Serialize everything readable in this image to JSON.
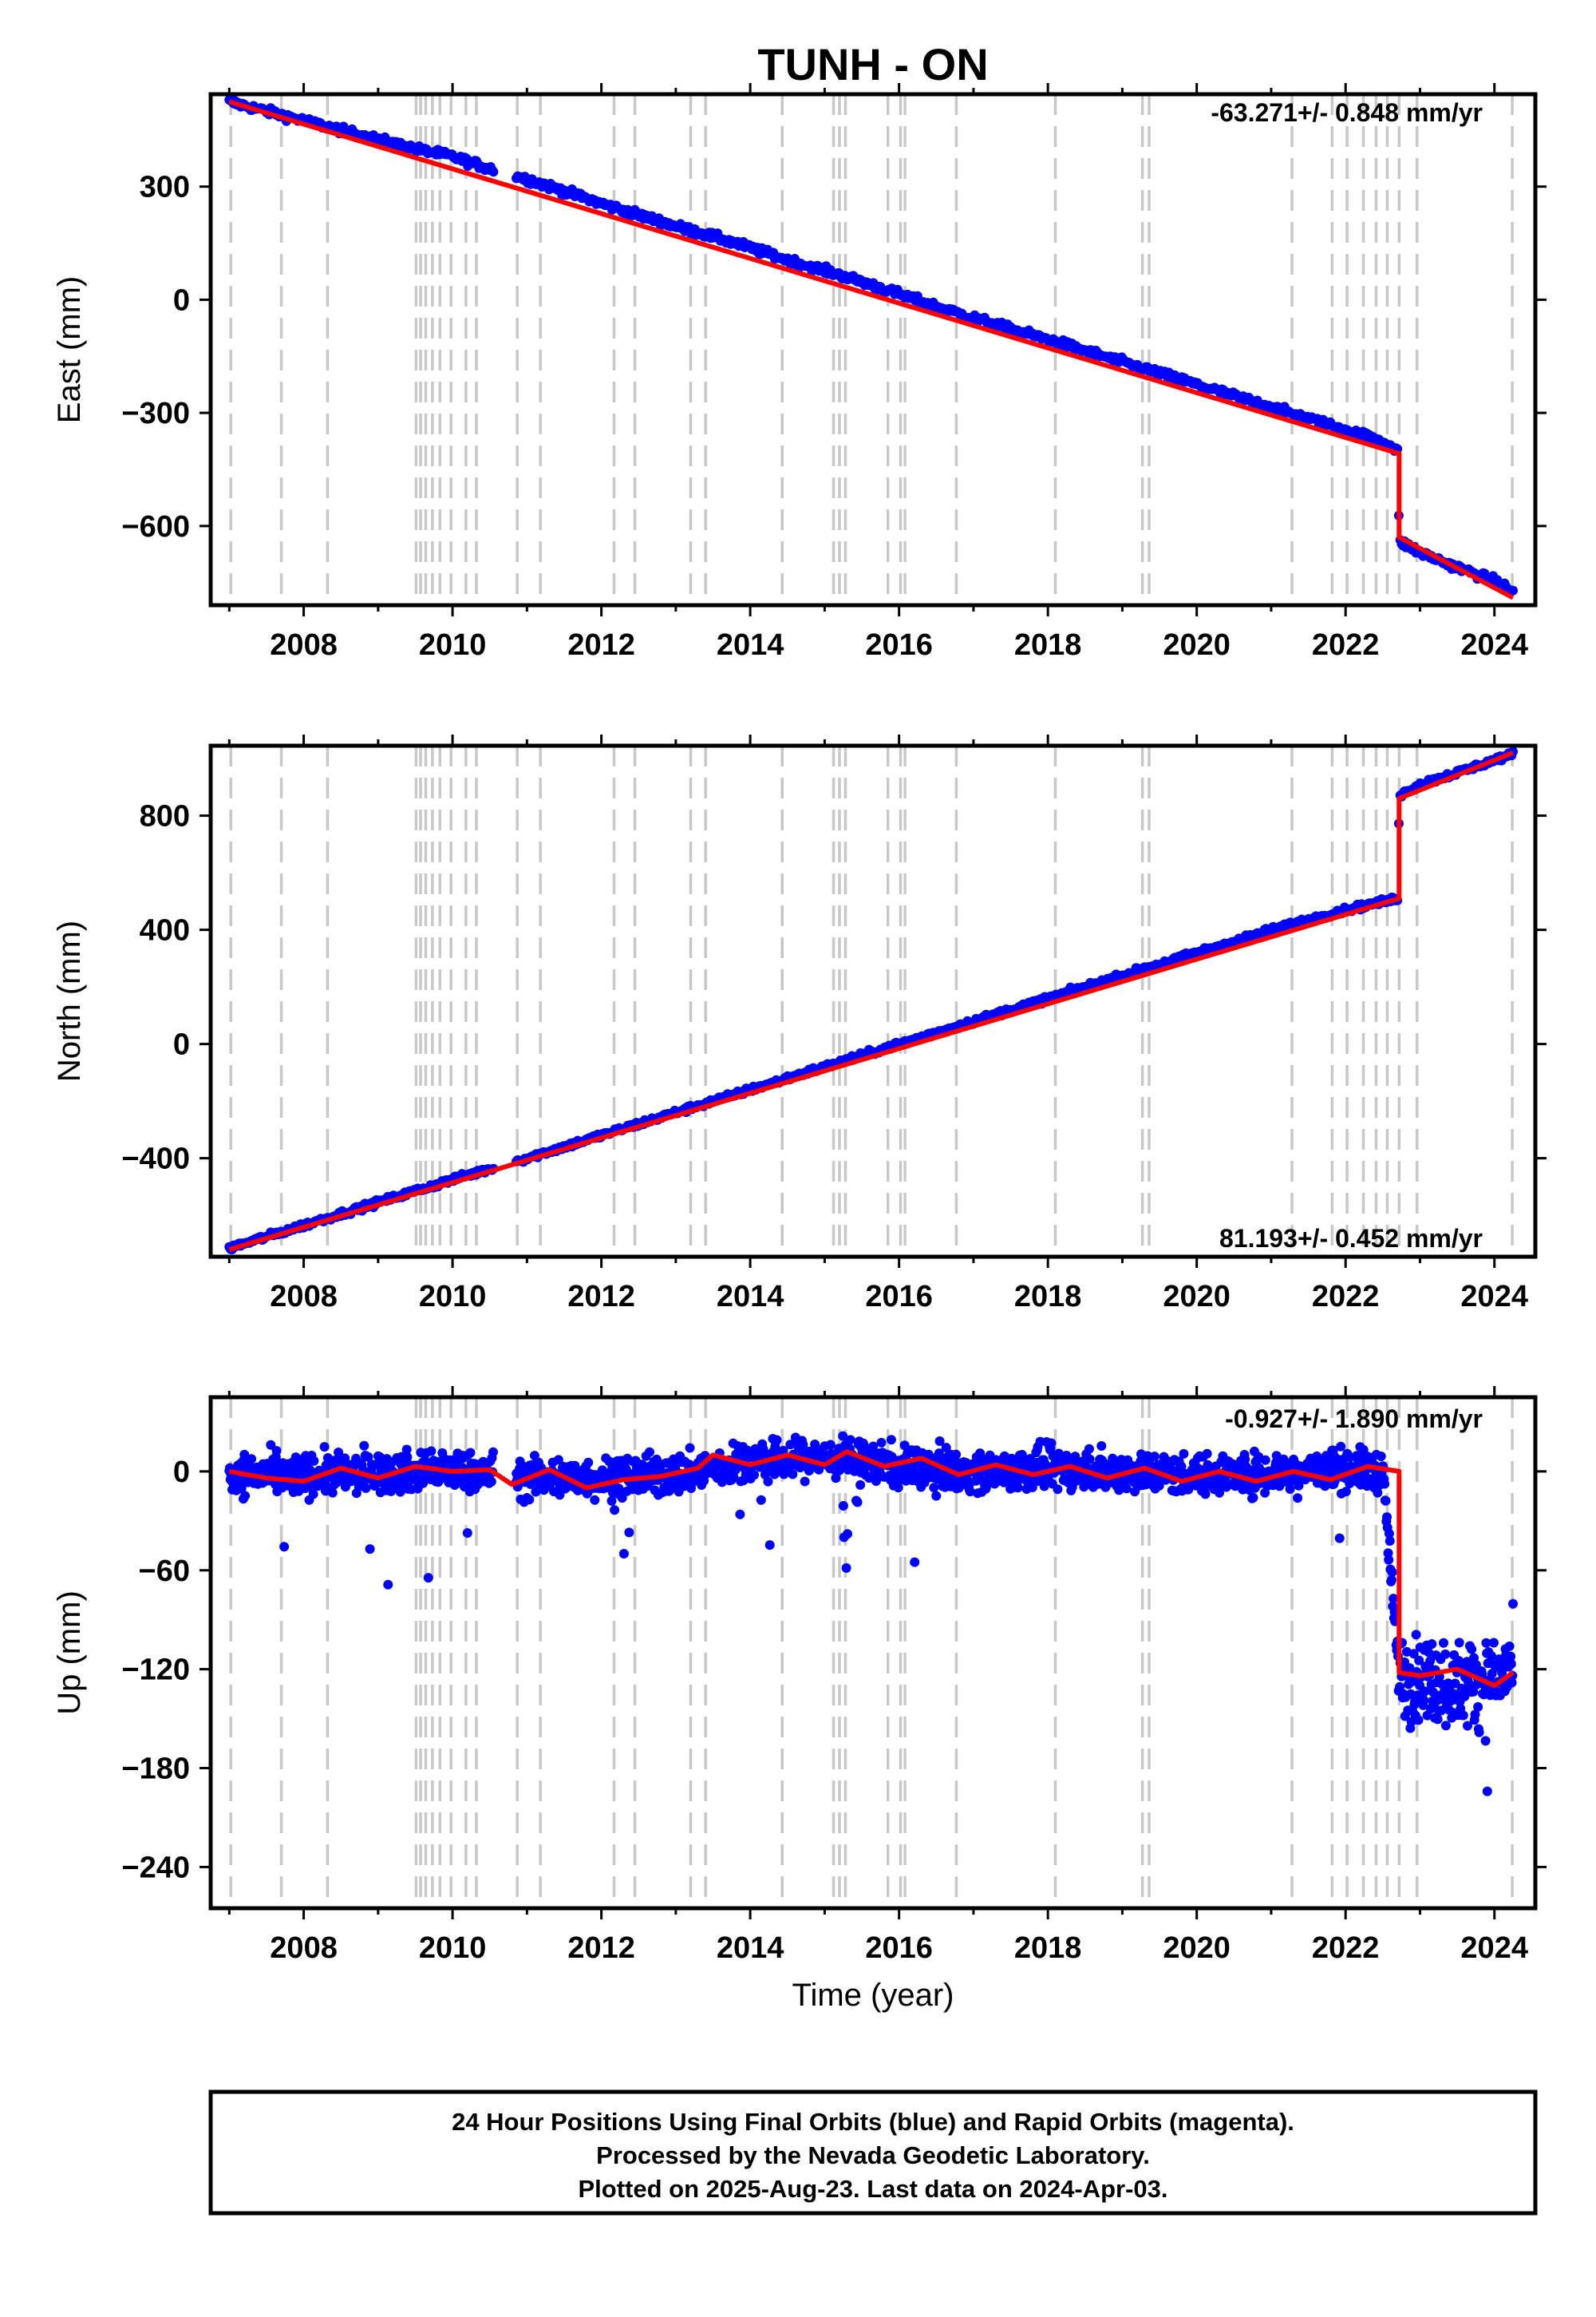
{
  "title": "TUNH - ON",
  "x_axis_label": "Time (year)",
  "footer": {
    "line1": "24 Hour Positions Using Final Orbits (blue) and Rapid Orbits (magenta).",
    "line2": "Processed by the Nevada Geodetic Laboratory.",
    "line3": "Plotted on 2025-Aug-23. Last data on 2024-Apr-03."
  },
  "colors": {
    "data": "#0000ff",
    "model": "#ff0000",
    "event_lines": "#c8c8c8",
    "frame": "#000000"
  },
  "chart_data": [
    {
      "type": "scatter",
      "component": "East",
      "ylabel": "East (mm)",
      "rate_label": "-63.271+/- 0.848 mm/yr",
      "xlim": [
        2006.75,
        2024.55
      ],
      "ylim": [
        -810,
        545
      ],
      "xticks": [
        2008,
        2010,
        2012,
        2014,
        2016,
        2018,
        2020,
        2022,
        2024
      ],
      "yticks": [
        -600,
        -300,
        0,
        300
      ],
      "series": [
        {
          "role": "daily positions (blue)",
          "x": [
            2007.0,
            2007.5,
            2008.0,
            2008.5,
            2009.0,
            2009.5,
            2010.0,
            2010.5,
            2011.0,
            2011.5,
            2012.0,
            2012.5,
            2013.0,
            2013.5,
            2014.0,
            2014.5,
            2015.0,
            2015.5,
            2016.0,
            2016.5,
            2017.0,
            2017.5,
            2018.0,
            2018.5,
            2019.0,
            2019.5,
            2020.0,
            2020.5,
            2021.0,
            2021.5,
            2022.0,
            2022.5,
            2022.7,
            2022.72,
            2023.0,
            2023.5,
            2024.0,
            2024.25
          ],
          "y": [
            525,
            500,
            475,
            450,
            425,
            400,
            380,
            348,
            320,
            288,
            255,
            225,
            195,
            168,
            138,
            105,
            78,
            48,
            15,
            -18,
            -48,
            -78,
            -105,
            -135,
            -165,
            -195,
            -225,
            -255,
            -285,
            -315,
            -345,
            -375,
            -400,
            -640,
            -670,
            -710,
            -745,
            -775
          ]
        },
        {
          "role": "model fit (red)",
          "x": [
            2007.0,
            2022.72,
            2022.72,
            2024.25
          ],
          "y": [
            525,
            -408,
            -630,
            -790
          ]
        }
      ]
    },
    {
      "type": "scatter",
      "component": "North",
      "ylabel": "North (mm)",
      "rate_label": "81.193+/- 0.452 mm/yr",
      "xlim": [
        2006.75,
        2024.55
      ],
      "ylim": [
        -745,
        1045
      ],
      "xticks": [
        2008,
        2010,
        2012,
        2014,
        2016,
        2018,
        2020,
        2022,
        2024
      ],
      "yticks": [
        -400,
        0,
        400,
        800
      ],
      "series": [
        {
          "role": "daily positions (blue)",
          "x": [
            2007.0,
            2008.0,
            2009.0,
            2010.0,
            2011.0,
            2012.0,
            2013.0,
            2014.0,
            2015.0,
            2016.0,
            2017.0,
            2018.0,
            2019.0,
            2020.0,
            2021.0,
            2022.0,
            2022.7,
            2022.72,
            2023.0,
            2023.5,
            2024.0,
            2024.25
          ],
          "y": [
            -715,
            -635,
            -555,
            -475,
            -400,
            -320,
            -240,
            -160,
            -80,
            0,
            80,
            160,
            240,
            320,
            400,
            470,
            510,
            870,
            910,
            950,
            995,
            1015
          ]
        },
        {
          "role": "model fit (red)",
          "x": [
            2007.0,
            2022.72,
            2022.72,
            2024.25
          ],
          "y": [
            -720,
            510,
            860,
            1020
          ]
        }
      ]
    },
    {
      "type": "scatter",
      "component": "Up",
      "ylabel": "Up (mm)",
      "rate_label": "-0.927+/- 1.890 mm/yr",
      "xlim": [
        2006.75,
        2024.55
      ],
      "ylim": [
        -265,
        45
      ],
      "xticks": [
        2008,
        2010,
        2012,
        2014,
        2016,
        2018,
        2020,
        2022,
        2024
      ],
      "yticks": [
        -240,
        -180,
        -120,
        -60,
        0
      ],
      "series": [
        {
          "role": "daily positions (blue)",
          "x": [
            2007.0,
            2008.0,
            2009.0,
            2010.0,
            2011.0,
            2012.0,
            2013.0,
            2014.0,
            2015.0,
            2016.0,
            2017.0,
            2018.0,
            2019.0,
            2020.0,
            2021.0,
            2022.0,
            2022.5,
            2022.72,
            2023.0,
            2023.5,
            2024.0,
            2024.25
          ],
          "y": [
            -2,
            -2,
            -1,
            1,
            -4,
            -4,
            -2,
            6,
            8,
            3,
            0,
            2,
            0,
            -2,
            -1,
            2,
            0,
            -125,
            -125,
            -130,
            -125,
            -120
          ]
        },
        {
          "role": "model fit (red)",
          "x": [
            2007.0,
            2007.5,
            2008.0,
            2008.5,
            2009.0,
            2009.5,
            2010.0,
            2010.5,
            2010.8,
            2011.3,
            2011.8,
            2012.3,
            2012.8,
            2013.3,
            2013.5,
            2014.0,
            2014.5,
            2015.0,
            2015.3,
            2015.8,
            2016.3,
            2016.8,
            2017.3,
            2017.8,
            2018.3,
            2018.8,
            2019.3,
            2019.8,
            2020.3,
            2020.8,
            2021.3,
            2021.8,
            2022.3,
            2022.72,
            2022.72,
            2023.0,
            2023.5,
            2024.0,
            2024.25
          ],
          "y": [
            0,
            -4,
            -6,
            2,
            -4,
            3,
            0,
            1,
            -8,
            1,
            -10,
            -5,
            -3,
            2,
            10,
            4,
            10,
            4,
            12,
            3,
            8,
            -2,
            4,
            -2,
            3,
            -4,
            2,
            -6,
            0,
            -6,
            0,
            -5,
            3,
            0,
            -122,
            -124,
            -120,
            -130,
            -122
          ]
        }
      ]
    }
  ],
  "event_lines_years": [
    2007.02,
    2007.7,
    2008.32,
    2009.51,
    2009.57,
    2009.64,
    2009.73,
    2009.83,
    2009.98,
    2010.18,
    2010.32,
    2010.87,
    2011.18,
    2012.17,
    2012.45,
    2013.2,
    2013.4,
    2014.43,
    2015.12,
    2015.2,
    2015.28,
    2015.85,
    2016.02,
    2016.08,
    2016.77,
    2018.1,
    2019.27,
    2019.36,
    2021.28,
    2021.82,
    2022.02,
    2022.24,
    2022.41,
    2022.56,
    2022.72,
    2022.96,
    2024.24
  ]
}
